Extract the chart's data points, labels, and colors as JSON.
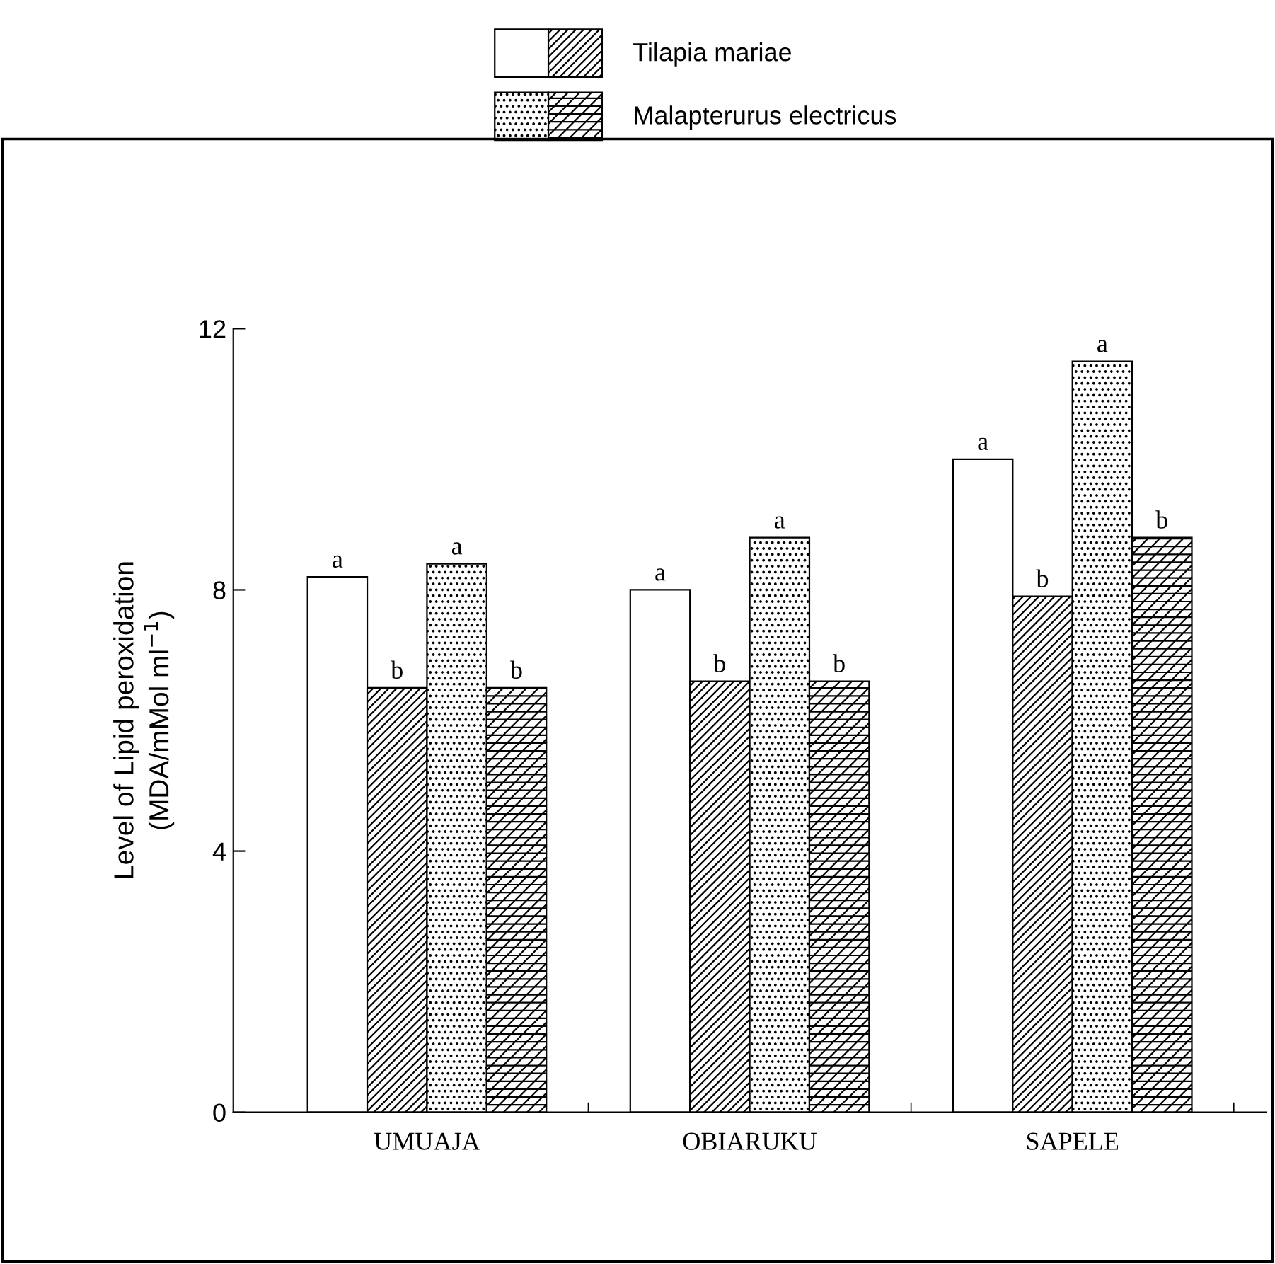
{
  "chart_data": {
    "type": "bar",
    "ylabel": "Level of Lipid peroxidation\n(MDA/mMol ml$^{−1}$)",
    "categories": [
      "UMUAJA",
      "OBIARUKU",
      "SAPELE"
    ],
    "series": [
      {
        "color": "#ffffff",
        "values": [
          8.2,
          8.0,
          10.0
        ],
        "value_labels": [
          "a",
          "a",
          "a"
        ]
      },
      {
        "name": "Tilapia mariae",
        "color": "#000000",
        "values": [
          6.5,
          6.6,
          7.9
        ],
        "value_labels": [
          "b",
          "b",
          "b"
        ]
      },
      {
        "color": "#000000",
        "values": [
          8.4,
          8.8,
          11.5
        ],
        "value_labels": [
          "a",
          "a",
          "a"
        ]
      },
      {
        "name": "Malapterurus electricus",
        "color": "#000000",
        "values": [
          6.5,
          6.6,
          8.8
        ],
        "value_labels": [
          "b",
          "b",
          "b"
        ]
      }
    ],
    "ylim": [
      0,
      12
    ],
    "yticks": [
      0,
      4,
      8,
      12
    ],
    "grid": false,
    "legend": "top"
  }
}
